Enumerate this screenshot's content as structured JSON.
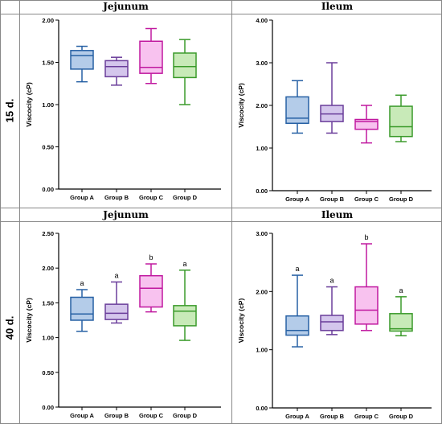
{
  "header": {
    "col1": "Jejunum",
    "col2": "Ileum"
  },
  "rows": [
    {
      "label": "15 d."
    },
    {
      "label": "40 d."
    }
  ],
  "chart_data": [
    {
      "type": "box",
      "panel": "15 d. Jejunum",
      "title": "Jejunum",
      "ylabel": "Viscocity (cP)",
      "ylim": [
        0,
        2
      ],
      "yticks": [
        "0.00",
        "0.50",
        "1.00",
        "1.50",
        "2.00"
      ],
      "ytick_values": [
        0,
        0.5,
        1,
        1.5,
        2
      ],
      "categories": [
        "Group A",
        "Group B",
        "Group C",
        "Group D"
      ],
      "boxes": [
        {
          "min": 1.27,
          "q1": 1.42,
          "median": 1.58,
          "q3": 1.64,
          "max": 1.69
        },
        {
          "min": 1.23,
          "q1": 1.33,
          "median": 1.45,
          "q3": 1.52,
          "max": 1.56
        },
        {
          "min": 1.25,
          "q1": 1.37,
          "median": 1.44,
          "q3": 1.75,
          "max": 1.9
        },
        {
          "min": 1.0,
          "q1": 1.32,
          "median": 1.45,
          "q3": 1.61,
          "max": 1.77
        }
      ],
      "letters": [
        "",
        "",
        "",
        ""
      ]
    },
    {
      "type": "box",
      "panel": "15 d. Ileum",
      "title": "Ileum",
      "ylabel": "Viscocity (cP)",
      "ylim": [
        0,
        4
      ],
      "yticks": [
        "0.00",
        "1.00",
        "2.00",
        "3.00",
        "4.00"
      ],
      "ytick_values": [
        0,
        1,
        2,
        3,
        4
      ],
      "categories": [
        "Group A",
        "Group B",
        "Group C",
        "Group D"
      ],
      "boxes": [
        {
          "min": 1.35,
          "q1": 1.58,
          "median": 1.7,
          "q3": 2.2,
          "max": 2.58
        },
        {
          "min": 1.35,
          "q1": 1.62,
          "median": 1.8,
          "q3": 2.0,
          "max": 3.0
        },
        {
          "min": 1.12,
          "q1": 1.44,
          "median": 1.62,
          "q3": 1.67,
          "max": 2.0
        },
        {
          "min": 1.15,
          "q1": 1.27,
          "median": 1.5,
          "q3": 1.98,
          "max": 2.24
        }
      ],
      "letters": [
        "",
        "",
        "",
        ""
      ]
    },
    {
      "type": "box",
      "panel": "40 d. Jejunum",
      "title": "Jejunum",
      "ylabel": "Viscocity (cP)",
      "ylim": [
        0,
        2.5
      ],
      "yticks": [
        "0.00",
        "0.50",
        "1.00",
        "1.50",
        "2.00",
        "2.50"
      ],
      "ytick_values": [
        0,
        0.5,
        1,
        1.5,
        2,
        2.5
      ],
      "categories": [
        "Group A",
        "Group B",
        "Group C",
        "Group D"
      ],
      "boxes": [
        {
          "min": 1.09,
          "q1": 1.25,
          "median": 1.34,
          "q3": 1.58,
          "max": 1.69
        },
        {
          "min": 1.21,
          "q1": 1.26,
          "median": 1.35,
          "q3": 1.48,
          "max": 1.8
        },
        {
          "min": 1.37,
          "q1": 1.44,
          "median": 1.71,
          "q3": 1.89,
          "max": 2.06
        },
        {
          "min": 0.96,
          "q1": 1.17,
          "median": 1.38,
          "q3": 1.46,
          "max": 1.97
        }
      ],
      "letters": [
        "a",
        "a",
        "b",
        "a"
      ]
    },
    {
      "type": "box",
      "panel": "40 d. Ileum",
      "title": "Ileum",
      "ylabel": "Viscocity (cP)",
      "ylim": [
        0,
        3
      ],
      "yticks": [
        "0.00",
        "1.00",
        "2.00",
        "3.00"
      ],
      "ytick_values": [
        0,
        1,
        2,
        3
      ],
      "categories": [
        "Group A",
        "Group B",
        "Group C",
        "Group D"
      ],
      "boxes": [
        {
          "min": 1.05,
          "q1": 1.25,
          "median": 1.33,
          "q3": 1.58,
          "max": 2.28
        },
        {
          "min": 1.26,
          "q1": 1.33,
          "median": 1.48,
          "q3": 1.59,
          "max": 2.08
        },
        {
          "min": 1.33,
          "q1": 1.44,
          "median": 1.68,
          "q3": 2.08,
          "max": 2.82
        },
        {
          "min": 1.24,
          "q1": 1.32,
          "median": 1.36,
          "q3": 1.62,
          "max": 1.91
        }
      ],
      "letters": [
        "a",
        "a",
        "b",
        "a"
      ]
    }
  ],
  "colors": {
    "groups": [
      {
        "stroke": "#2660a4",
        "fill": "#b4cce9"
      },
      {
        "stroke": "#6a3d9a",
        "fill": "#d4c6ec"
      },
      {
        "stroke": "#c0189f",
        "fill": "#f8c2ef"
      },
      {
        "stroke": "#3a9a2a",
        "fill": "#c8eab8"
      }
    ],
    "border": "#888888"
  }
}
